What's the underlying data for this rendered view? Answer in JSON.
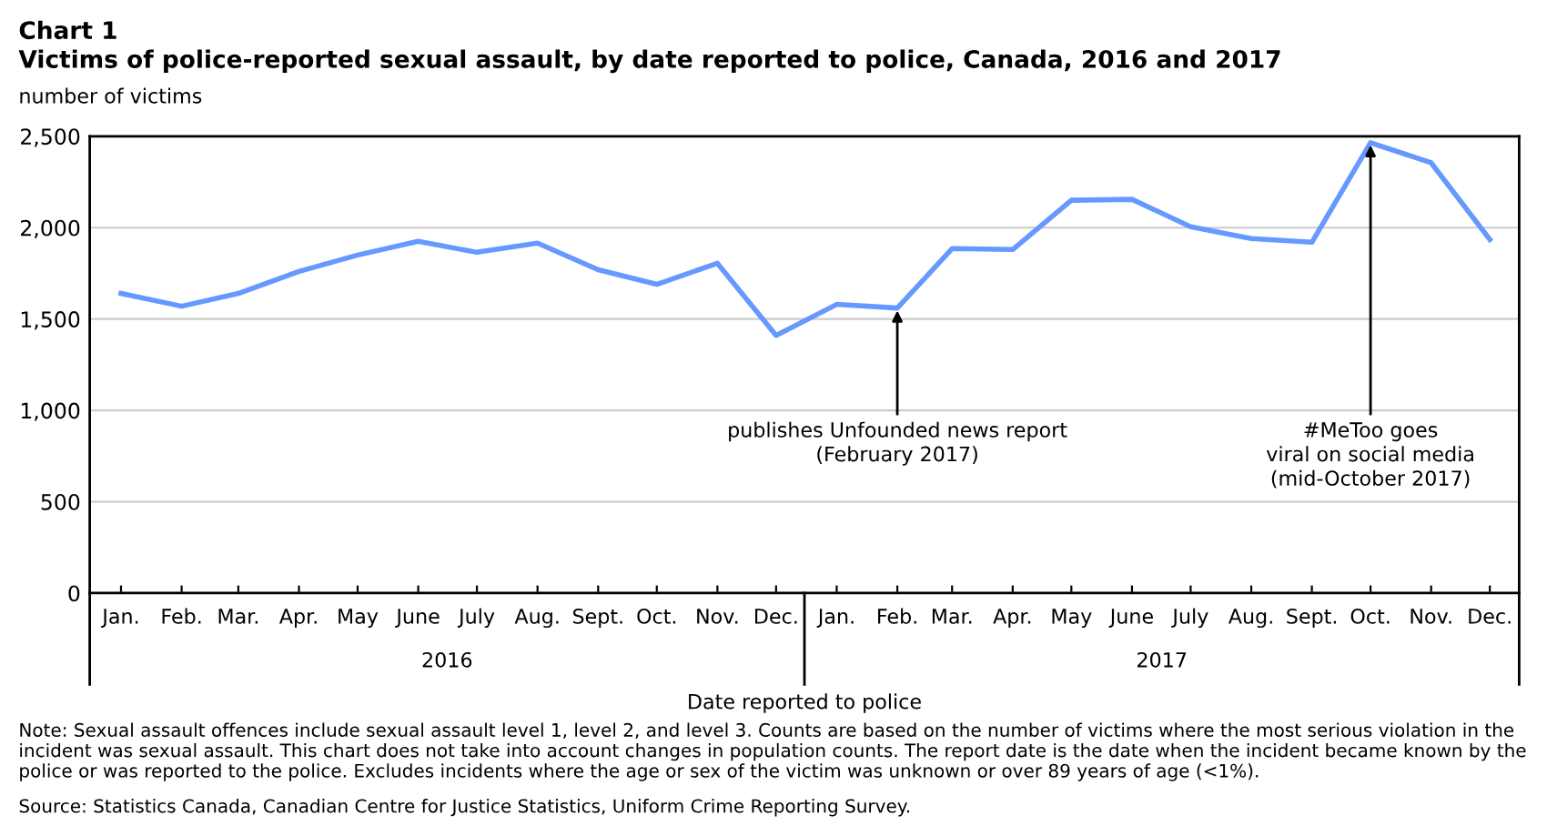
{
  "chart_data": {
    "type": "line",
    "title": "Chart 1",
    "subtitle": "Victims of police-reported sexual assault, by date reported to police, Canada, 2016 and 2017",
    "ylabel": "number of victims",
    "xlabel": "Date reported to police",
    "x": [
      "2016-01",
      "2016-02",
      "2016-03",
      "2016-04",
      "2016-05",
      "2016-06",
      "2016-07",
      "2016-08",
      "2016-09",
      "2016-10",
      "2016-11",
      "2016-12",
      "2017-01",
      "2017-02",
      "2017-03",
      "2017-04",
      "2017-05",
      "2017-06",
      "2017-07",
      "2017-08",
      "2017-09",
      "2017-10",
      "2017-11",
      "2017-12"
    ],
    "series": [
      {
        "color": "#6699ff",
        "values": [
          1640,
          1570,
          1640,
          1760,
          1850,
          1925,
          1865,
          1915,
          1770,
          1690,
          1805,
          1410,
          1580,
          1560,
          1885,
          1880,
          2150,
          2155,
          2005,
          1940,
          1920,
          2465,
          2355,
          1935
        ]
      }
    ],
    "xlim": [
      "2015-12-16",
      "2017-12-16"
    ],
    "xticks": [
      {
        "value": "2016-01",
        "label": "Jan."
      },
      {
        "value": "2016-02",
        "label": "Feb."
      },
      {
        "value": "2016-03",
        "label": "Mar."
      },
      {
        "value": "2016-04",
        "label": "Apr."
      },
      {
        "value": "2016-05",
        "label": "May"
      },
      {
        "value": "2016-06",
        "label": "June"
      },
      {
        "value": "2016-07",
        "label": "July"
      },
      {
        "value": "2016-08",
        "label": "Aug."
      },
      {
        "value": "2016-09",
        "label": "Sept."
      },
      {
        "value": "2016-10",
        "label": "Oct."
      },
      {
        "value": "2016-11",
        "label": "Nov."
      },
      {
        "value": "2016-12",
        "label": "Dec."
      },
      {
        "value": "2017-01",
        "label": "Jan."
      },
      {
        "value": "2017-02",
        "label": "Feb."
      },
      {
        "value": "2017-03",
        "label": "Mar."
      },
      {
        "value": "2017-04",
        "label": "Apr."
      },
      {
        "value": "2017-05",
        "label": "May"
      },
      {
        "value": "2017-06",
        "label": "June"
      },
      {
        "value": "2017-07",
        "label": "July"
      },
      {
        "value": "2017-08",
        "label": "Aug."
      },
      {
        "value": "2017-09",
        "label": "Sept."
      },
      {
        "value": "2017-10",
        "label": "Oct."
      },
      {
        "value": "2017-11",
        "label": "Nov."
      },
      {
        "value": "2017-12",
        "label": "Dec."
      }
    ],
    "ylim": [
      0,
      2500
    ],
    "yticks": [
      {
        "value": 0,
        "label": "0"
      },
      {
        "value": 500,
        "label": "500"
      },
      {
        "value": 1000,
        "label": "1,000"
      },
      {
        "value": 1500,
        "label": "1,500"
      },
      {
        "value": 2000,
        "label": "2,000"
      },
      {
        "value": 2500,
        "label": "2,500"
      }
    ],
    "grid": "y",
    "legend": false,
    "marker": "none",
    "line_style": "solid",
    "annotations": [
      "2016",
      "2017",
      {
        "text": "publishes Unfounded news report\n(February 2017)",
        "x": "2017-02",
        "y": 1560
      },
      {
        "text": "#MeToo goes\nviral on social media\n(mid-October 2017)",
        "x": "2017-10",
        "y": 2465
      },
      "Note: Sexual assault offences include sexual assault level 1, level 2, and level 3. Counts are based on the number of victims where the most serious violation in the incident was sexual assault. This chart does not take into account changes in population counts. The report date is the date when the incident became known by the police or was reported to the police. Excludes incidents where the age or sex of the victim was unknown or over 89 years of age (<1%).",
      "Source: Statistics Canada, Canadian Centre for Justice Statistics, Uniform Crime Reporting Survey."
    ]
  }
}
